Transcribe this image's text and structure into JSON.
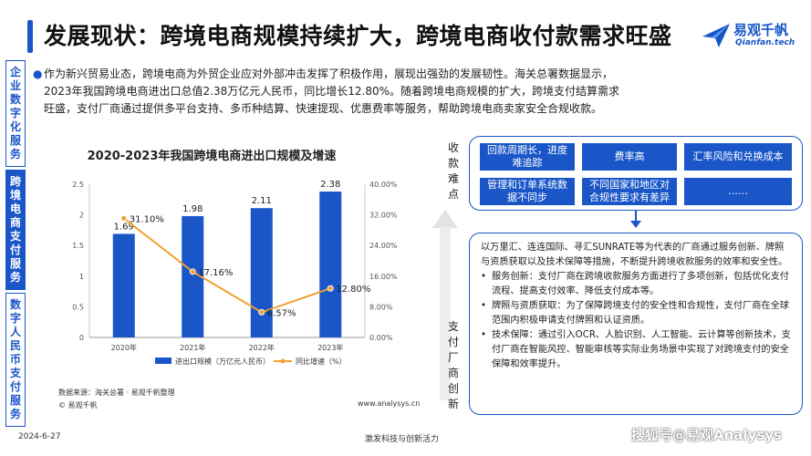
{
  "header": {
    "title": "发展现状：跨境电商规模持续扩大，跨境电商收付款需求旺盛",
    "logo_name": "易观千帆",
    "logo_sub": "Qianfan.tech"
  },
  "side_nav": [
    {
      "label": "企业数字化服务",
      "active": false
    },
    {
      "label": "跨境电商支付服务",
      "active": true
    },
    {
      "label": "数字人民币支付服务",
      "active": false
    }
  ],
  "intro_lines": [
    "作为新兴贸易业态，跨境电商为外贸企业应对外部冲击发挥了积极作用，展现出强劲的发展韧性。海关总署数据显示，",
    "2023年我国跨境电商进出口总值2.38万亿元人民币，同比增长12.80%。随着跨境电商规模的扩大，跨境支付结算需求",
    "旺盛，支付厂商通过提供多平台支持、多币种结算、快速提现、优惠费率等服务，帮助跨境电商卖家安全合规收款。"
  ],
  "chart_data": {
    "type": "bar",
    "title": "2020-2023年我国跨境电商进出口规模及增速",
    "categories": [
      "2020年",
      "2021年",
      "2022年",
      "2023年"
    ],
    "series": [
      {
        "name": "进出口规模（万亿元人民币）",
        "type": "bar",
        "values": [
          1.69,
          1.98,
          2.11,
          2.38
        ],
        "labels": [
          "1.69",
          "1.98",
          "2.11",
          "2.38"
        ],
        "axis": "left",
        "color": "#1a56c8"
      },
      {
        "name": "同比增速（%）",
        "type": "line",
        "values": [
          31.1,
          17.16,
          6.57,
          12.8
        ],
        "labels": [
          "31.10%",
          "17.16%",
          "6.57%",
          "12.80%"
        ],
        "axis": "right",
        "color": "#f0a030"
      }
    ],
    "ylim_left": [
      0,
      2.5
    ],
    "yticks_left": [
      "0",
      "0.5",
      "1",
      "1.5",
      "2",
      "2.5"
    ],
    "ylim_right": [
      0,
      40
    ],
    "yticks_right": [
      "0.00%",
      "8.00%",
      "16.00%",
      "24.00%",
      "32.00%",
      "40.00%"
    ],
    "grid": false,
    "legend": "bottom"
  },
  "chart_notes": {
    "source": "数据来源：海关总署 · 易观千帆整理",
    "copyright": "© 易观千帆",
    "website": "www.analysys.cn"
  },
  "pain_label": "收款难点",
  "pain_points": [
    "回款周期长，进度难追踪",
    "费率高",
    "汇率风险和兑换成本",
    "管理和订单系统数据不同步",
    "不同国家和地区对合规性要求有差异",
    "……"
  ],
  "solution_label": "支付厂商创新",
  "solution": {
    "intro": "以万里汇、连连国际、寻汇SUNRATE等为代表的厂商通过服务创新、牌照与资质获取以及技术保障等措施，不断提升跨境收款服务的效率和安全性。",
    "items": [
      "服务创新：支付厂商在跨境收款服务方面进行了多项创新，包括优化支付流程、提高支付效率、降低支付成本等。",
      "牌照与资质获取：为了保障跨境支付的安全性和合规性，支付厂商在全球范围内积极申请支付牌照和认证资质。",
      "技术保障：通过引入OCR、人脸识别、人工智能、云计算等创新技术，支付厂商在智能风控、智能审核等实际业务场景中实现了对跨境支付的安全保障和效率提升。"
    ]
  },
  "footer": {
    "date": "2024-6-27",
    "slogan": "激发科技与创新活力",
    "watermark": "搜狐号@易观Analysys"
  },
  "colors": {
    "brand": "#1a56c8",
    "line": "#f0a030"
  }
}
